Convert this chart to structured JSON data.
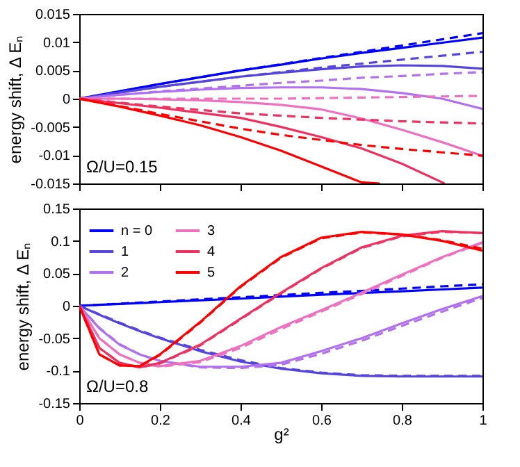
{
  "chart_data": [
    {
      "type": "line",
      "ylabel": "energy shift, Δ Eₙ",
      "annotations": [
        "Ω/U=0.15"
      ],
      "xlim": [
        0,
        1
      ],
      "xticks": [
        0,
        0.2,
        0.4,
        0.6,
        0.8,
        1
      ],
      "ylim": [
        -0.015,
        0.015
      ],
      "yticks": [
        -0.015,
        -0.01,
        -0.005,
        0,
        0.005,
        0.01,
        0.015
      ],
      "tick_labels": "y",
      "x": [
        0,
        0.1,
        0.2,
        0.3,
        0.4,
        0.5,
        0.6,
        0.7,
        0.8,
        0.9,
        1
      ],
      "series": [
        {
          "color": "#0000ff",
          "line_style": "solid",
          "values": [
            0,
            0.0013,
            0.0026,
            0.0038,
            0.005,
            0.006,
            0.0071,
            0.0081,
            0.009,
            0.0099,
            0.0108
          ]
        },
        {
          "color": "#0000ff",
          "line_style": "dashed",
          "values": [
            0,
            0.0013,
            0.0026,
            0.0038,
            0.005,
            0.0061,
            0.0072,
            0.0083,
            0.0094,
            0.0105,
            0.0116
          ]
        },
        {
          "color": "#5544dd",
          "line_style": "solid",
          "values": [
            0,
            0.0011,
            0.0021,
            0.003,
            0.0039,
            0.0046,
            0.0052,
            0.0057,
            0.0059,
            0.0058,
            0.0053
          ]
        },
        {
          "color": "#5544dd",
          "line_style": "dashed",
          "values": [
            0,
            0.0011,
            0.0021,
            0.003,
            0.0039,
            0.0047,
            0.0055,
            0.0062,
            0.0069,
            0.0076,
            0.0083
          ]
        },
        {
          "color": "#b070f0",
          "line_style": "solid",
          "values": [
            0,
            0.0007,
            0.0012,
            0.0016,
            0.0019,
            0.002,
            0.002,
            0.0017,
            0.001,
            0,
            -0.0018
          ]
        },
        {
          "color": "#b070f0",
          "line_style": "dashed",
          "values": [
            0,
            0.0007,
            0.0013,
            0.0018,
            0.0023,
            0.0028,
            0.0032,
            0.0037,
            0.004,
            0.0044,
            0.0047
          ]
        },
        {
          "color": "#f070c0",
          "line_style": "solid",
          "values": [
            0,
            0,
            -0.0001,
            -0.0003,
            -0.0006,
            -0.0011,
            -0.0019,
            -0.0035,
            -0.0055,
            -0.0077,
            -0.0101
          ]
        },
        {
          "color": "#f070c0",
          "line_style": "dashed",
          "values": [
            0,
            0,
            0,
            0,
            0,
            0,
            0.0001,
            0.0002,
            0.0003,
            0.0004,
            0.0005
          ]
        },
        {
          "color": "#f03060",
          "line_style": "solid",
          "x": [
            0,
            0.1,
            0.2,
            0.3,
            0.4,
            0.5,
            0.6,
            0.7,
            0.8,
            0.9,
            0.906
          ],
          "values": [
            0,
            -0.0008,
            -0.0016,
            -0.0025,
            -0.0034,
            -0.005,
            -0.0068,
            -0.0088,
            -0.0115,
            -0.0148,
            -0.015
          ]
        },
        {
          "color": "#f03060",
          "line_style": "dashed",
          "values": [
            0,
            -0.0007,
            -0.0014,
            -0.002,
            -0.0026,
            -0.003,
            -0.0034,
            -0.0037,
            -0.004,
            -0.0042,
            -0.0044
          ]
        },
        {
          "color": "#ff0000",
          "line_style": "solid",
          "x": [
            0,
            0.1,
            0.2,
            0.3,
            0.4,
            0.5,
            0.6,
            0.7,
            0.745
          ],
          "values": [
            0,
            -0.0014,
            -0.003,
            -0.0047,
            -0.0068,
            -0.0092,
            -0.012,
            -0.0148,
            -0.015
          ]
        },
        {
          "color": "#ff0000",
          "line_style": "dashed",
          "values": [
            0,
            -0.0013,
            -0.0027,
            -0.004,
            -0.0053,
            -0.0064,
            -0.0073,
            -0.0082,
            -0.0089,
            -0.0095,
            -0.0101
          ]
        }
      ]
    },
    {
      "type": "line",
      "xlabel": "g²",
      "ylabel": "energy shift, Δ Eₙ",
      "annotations": [
        "Ω/U=0.8"
      ],
      "legend": "top left",
      "xlim": [
        0,
        1
      ],
      "xticks": [
        0,
        0.2,
        0.4,
        0.6,
        0.8,
        1
      ],
      "ylim": [
        -0.15,
        0.15
      ],
      "yticks": [
        -0.15,
        -0.1,
        -0.05,
        0,
        0.05,
        0.1,
        0.15
      ],
      "x": [
        0,
        0.05,
        0.1,
        0.15,
        0.2,
        0.3,
        0.4,
        0.5,
        0.6,
        0.7,
        0.8,
        0.9,
        1
      ],
      "series": [
        {
          "name": "n = 0",
          "color": "#0000ff",
          "line_style": "solid",
          "values": [
            0,
            0.0014,
            0.0028,
            0.0042,
            0.0056,
            0.0084,
            0.011,
            0.014,
            0.017,
            0.0196,
            0.0224,
            0.0252,
            0.028
          ]
        },
        {
          "color": "#0000ff",
          "line_style": "dashed",
          "values": [
            0,
            0.0016,
            0.0033,
            0.005,
            0.0066,
            0.01,
            0.013,
            0.0165,
            0.02,
            0.023,
            0.0265,
            0.03,
            0.033
          ]
        },
        {
          "name": "1",
          "color": "#5544dd",
          "line_style": "solid",
          "values": [
            0,
            -0.014,
            -0.027,
            -0.039,
            -0.05,
            -0.07,
            -0.086,
            -0.097,
            -0.104,
            -0.108,
            -0.109,
            -0.109,
            -0.109
          ]
        },
        {
          "color": "#5544dd",
          "line_style": "dashed",
          "values": [
            0,
            -0.013,
            -0.026,
            -0.038,
            -0.049,
            -0.068,
            -0.084,
            -0.096,
            -0.103,
            -0.107,
            -0.108,
            -0.108,
            -0.108
          ]
        },
        {
          "name": "2",
          "color": "#b070f0",
          "line_style": "solid",
          "values": [
            0,
            -0.035,
            -0.06,
            -0.075,
            -0.085,
            -0.094,
            -0.094,
            -0.088,
            -0.07,
            -0.05,
            -0.027,
            -0.005,
            0.015
          ]
        },
        {
          "color": "#b070f0",
          "line_style": "dashed",
          "values": [
            0,
            -0.034,
            -0.059,
            -0.075,
            -0.085,
            -0.095,
            -0.096,
            -0.091,
            -0.074,
            -0.054,
            -0.031,
            -0.009,
            0.012
          ]
        },
        {
          "name": "3",
          "color": "#f070c0",
          "line_style": "solid",
          "values": [
            0,
            -0.05,
            -0.075,
            -0.088,
            -0.093,
            -0.085,
            -0.062,
            -0.033,
            -0.007,
            0.02,
            0.048,
            0.075,
            0.098
          ]
        },
        {
          "color": "#f070c0",
          "line_style": "dashed",
          "values": [
            0,
            -0.05,
            -0.075,
            -0.088,
            -0.094,
            -0.087,
            -0.065,
            -0.036,
            -0.009,
            0.018,
            0.046,
            0.074,
            0.097
          ]
        },
        {
          "name": "4",
          "color": "#f03060",
          "line_style": "solid",
          "values": [
            0,
            -0.065,
            -0.088,
            -0.095,
            -0.088,
            -0.06,
            -0.02,
            0.02,
            0.058,
            0.09,
            0.108,
            0.115,
            0.112
          ]
        },
        {
          "color": "#f03060",
          "line_style": "dashed",
          "values": [
            0,
            -0.065,
            -0.088,
            -0.095,
            -0.089,
            -0.061,
            -0.021,
            0.019,
            0.057,
            0.089,
            0.107,
            0.114,
            0.112
          ]
        },
        {
          "name": "5",
          "color": "#ff0000",
          "line_style": "solid",
          "values": [
            0,
            -0.075,
            -0.092,
            -0.093,
            -0.075,
            -0.025,
            0.03,
            0.075,
            0.105,
            0.114,
            0.11,
            0.1,
            0.085
          ]
        },
        {
          "color": "#ff0000",
          "line_style": "dashed",
          "values": [
            0,
            -0.075,
            -0.092,
            -0.093,
            -0.076,
            -0.026,
            0.029,
            0.074,
            0.104,
            0.113,
            0.11,
            0.101,
            0.088
          ]
        }
      ]
    }
  ]
}
